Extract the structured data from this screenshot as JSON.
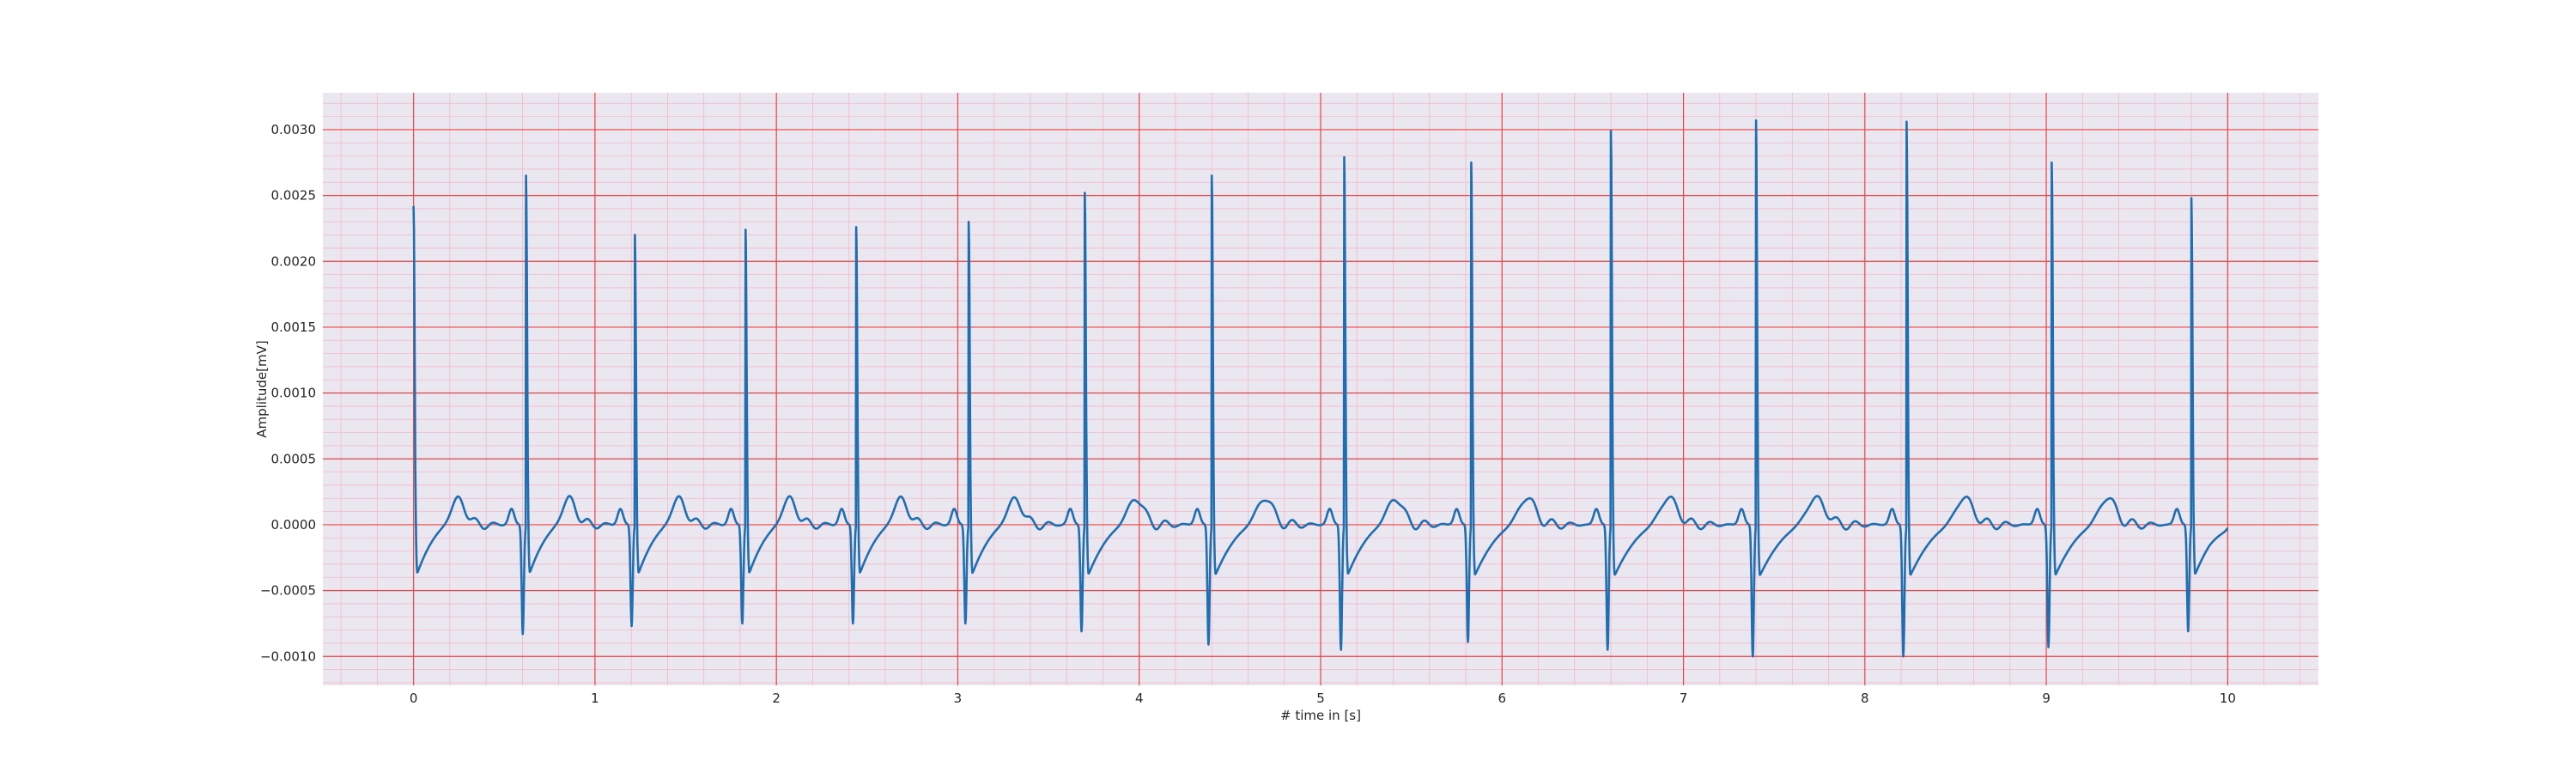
{
  "chart_data": {
    "type": "line",
    "title": "",
    "xlabel": "# time in [s]",
    "ylabel": "Amplitude[mV]",
    "xlim": [
      -0.5,
      10.5
    ],
    "ylim": [
      -0.00122,
      0.00328
    ],
    "x_ticks": [
      0,
      1,
      2,
      3,
      4,
      5,
      6,
      7,
      8,
      9,
      10
    ],
    "x_tick_labels": [
      "0",
      "1",
      "2",
      "3",
      "4",
      "5",
      "6",
      "7",
      "8",
      "9",
      "10"
    ],
    "y_ticks": [
      -0.001,
      -0.0005,
      0.0,
      0.0005,
      0.001,
      0.0015,
      0.002,
      0.0025,
      0.003
    ],
    "y_tick_labels": [
      "−0.0010",
      "−0.0005",
      "0.0000",
      "0.0005",
      "0.0010",
      "0.0015",
      "0.0020",
      "0.0025",
      "0.0030"
    ],
    "grid": {
      "major": true,
      "minor": true,
      "major_color": "#ee4444",
      "minor_color": "#f2b8c6"
    },
    "background_color": "#eae7f1",
    "line_color": "#1f6fb0",
    "legend": "none",
    "x_range_data": [
      0,
      10
    ],
    "r_peaks": [
      {
        "t": 0.0,
        "r": 0.00242,
        "s": -0.00055
      },
      {
        "t": 0.62,
        "r": 0.00265,
        "s": -0.00083
      },
      {
        "t": 1.22,
        "r": 0.0022,
        "s": -0.00077
      },
      {
        "t": 1.83,
        "r": 0.00224,
        "s": -0.00075
      },
      {
        "t": 2.44,
        "r": 0.00226,
        "s": -0.00075
      },
      {
        "t": 3.06,
        "r": 0.0023,
        "s": -0.00075
      },
      {
        "t": 3.7,
        "r": 0.00252,
        "s": -0.00081
      },
      {
        "t": 4.4,
        "r": 0.00265,
        "s": -0.00091
      },
      {
        "t": 5.13,
        "r": 0.00279,
        "s": -0.00095
      },
      {
        "t": 5.83,
        "r": 0.00275,
        "s": -0.00089
      },
      {
        "t": 6.6,
        "r": 0.00299,
        "s": -0.00095
      },
      {
        "t": 7.4,
        "r": 0.00307,
        "s": -0.001
      },
      {
        "t": 8.23,
        "r": 0.00306,
        "s": -0.001
      },
      {
        "t": 9.03,
        "r": 0.00275,
        "s": -0.00093
      },
      {
        "t": 9.8,
        "r": 0.00248,
        "s": -0.00081
      }
    ],
    "baseline_after_r": -0.00045,
    "t_wave_amplitude": 0.0002,
    "end_value": -0.00022
  }
}
